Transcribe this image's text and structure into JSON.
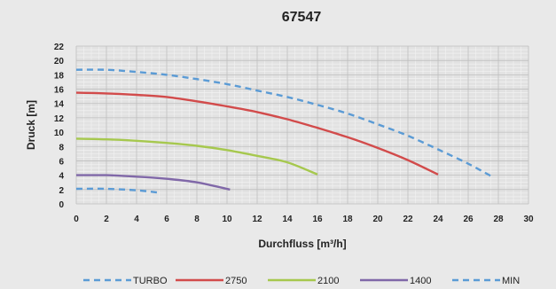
{
  "chart_data": {
    "type": "line",
    "title": "67547",
    "xlabel": "Durchfluss [m³/h]",
    "ylabel": "Druck [m]",
    "xlim": [
      0,
      30
    ],
    "ylim": [
      0,
      22
    ],
    "x_ticks": [
      0,
      2,
      4,
      6,
      8,
      10,
      12,
      14,
      16,
      18,
      20,
      22,
      24,
      26,
      28,
      30
    ],
    "y_ticks": [
      0,
      2,
      4,
      6,
      8,
      10,
      12,
      14,
      16,
      18,
      20,
      22
    ],
    "grid": true,
    "legend_position": "bottom",
    "series": [
      {
        "name": "TURBO",
        "color": "#5b9bd5",
        "dash": true,
        "points": [
          [
            0,
            18.7
          ],
          [
            2,
            18.7
          ],
          [
            4,
            18.4
          ],
          [
            6,
            18.0
          ],
          [
            8,
            17.4
          ],
          [
            10,
            16.7
          ],
          [
            12,
            15.8
          ],
          [
            14,
            14.9
          ],
          [
            16,
            13.8
          ],
          [
            18,
            12.6
          ],
          [
            20,
            11.1
          ],
          [
            22,
            9.5
          ],
          [
            24,
            7.6
          ],
          [
            26,
            5.6
          ],
          [
            27.5,
            3.9
          ]
        ]
      },
      {
        "name": "2750",
        "color": "#d24b4b",
        "dash": false,
        "points": [
          [
            0,
            15.5
          ],
          [
            2,
            15.4
          ],
          [
            4,
            15.2
          ],
          [
            6,
            14.9
          ],
          [
            8,
            14.3
          ],
          [
            10,
            13.6
          ],
          [
            12,
            12.8
          ],
          [
            14,
            11.8
          ],
          [
            16,
            10.6
          ],
          [
            18,
            9.3
          ],
          [
            20,
            7.8
          ],
          [
            22,
            6.1
          ],
          [
            24,
            4.1
          ]
        ]
      },
      {
        "name": "2100",
        "color": "#a6c84e",
        "dash": false,
        "points": [
          [
            0,
            9.1
          ],
          [
            2,
            9.0
          ],
          [
            4,
            8.8
          ],
          [
            6,
            8.5
          ],
          [
            8,
            8.1
          ],
          [
            10,
            7.5
          ],
          [
            12,
            6.7
          ],
          [
            14,
            5.8
          ],
          [
            16,
            4.1
          ]
        ]
      },
      {
        "name": "1400",
        "color": "#8068a8",
        "dash": false,
        "points": [
          [
            0,
            4.0
          ],
          [
            2,
            4.0
          ],
          [
            4,
            3.8
          ],
          [
            6,
            3.5
          ],
          [
            8,
            3.0
          ],
          [
            10.2,
            2.0
          ]
        ]
      },
      {
        "name": "MIN",
        "color": "#5b9bd5",
        "dash": true,
        "points": [
          [
            0,
            2.1
          ],
          [
            2,
            2.1
          ],
          [
            4,
            1.9
          ],
          [
            5.4,
            1.6
          ]
        ]
      }
    ]
  }
}
